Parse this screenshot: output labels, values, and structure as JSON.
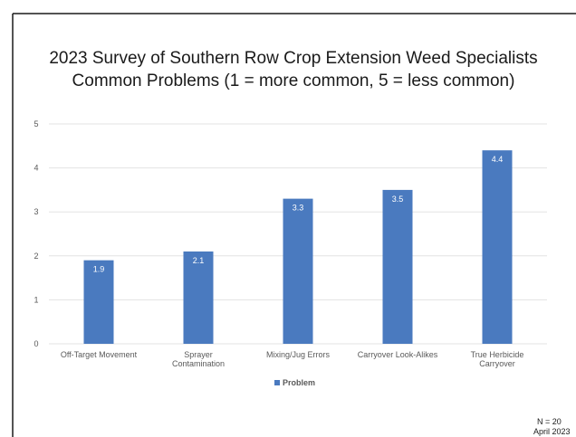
{
  "chart_data": {
    "type": "bar",
    "title": "2023 Survey of Southern Row Crop Extension Weed Specialists",
    "subtitle": "Common Problems (1 = more common, 5 = less common)",
    "categories": [
      [
        "Off-Target Movement"
      ],
      [
        "Sprayer",
        "Contamination"
      ],
      [
        "Mixing/Jug Errors"
      ],
      [
        "Carryover Look-Alikes"
      ],
      [
        "True Herbicide",
        "Carryover"
      ]
    ],
    "series": [
      {
        "name": "Problem",
        "values": [
          1.9,
          2.1,
          3.3,
          3.5,
          4.4
        ]
      }
    ],
    "data_labels": [
      "1.9",
      "2.1",
      "3.3",
      "3.5",
      "4.4"
    ],
    "ylim": [
      0,
      5
    ],
    "yticks": [
      "0",
      "1",
      "2",
      "3",
      "4",
      "5"
    ],
    "grid": true,
    "legend": "bottom-center",
    "colors": {
      "bar": "#4a7abf",
      "grid": "#e3e3e3",
      "border": "#1a1a1a"
    }
  },
  "notes": {
    "n": "N = 20",
    "date": "April 2023"
  }
}
